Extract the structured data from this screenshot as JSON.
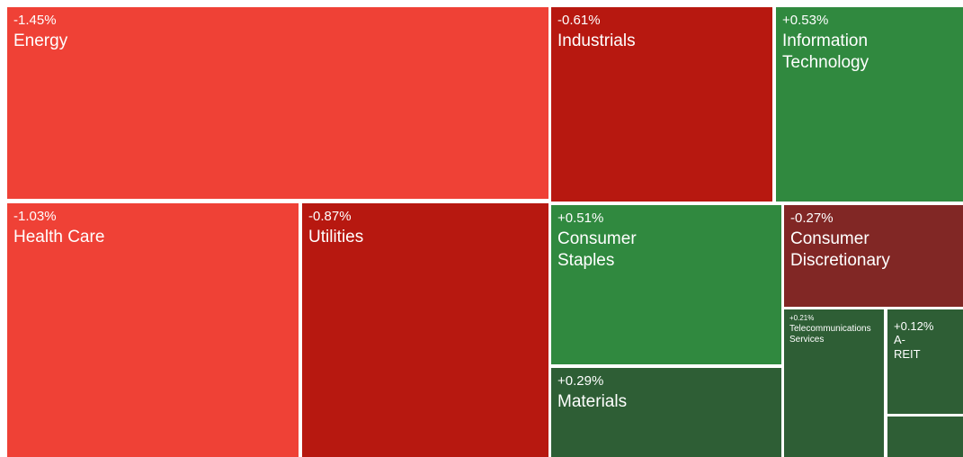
{
  "chart_data": {
    "type": "treemap",
    "title": "",
    "tiles": [
      {
        "name": "Energy",
        "change": "-1.45%",
        "value": -1.45,
        "color": "#ef4136"
      },
      {
        "name": "Industrials",
        "change": "-0.61%",
        "value": -0.61,
        "color": "#b71810"
      },
      {
        "name": "Information Technology",
        "change": "+0.53%",
        "value": 0.53,
        "color": "#30893f"
      },
      {
        "name": "Health Care",
        "change": "-1.03%",
        "value": -1.03,
        "color": "#ef4136"
      },
      {
        "name": "Utilities",
        "change": "-0.87%",
        "value": -0.87,
        "color": "#b71810"
      },
      {
        "name": "Consumer Staples",
        "change": "+0.51%",
        "value": 0.51,
        "color": "#30893f"
      },
      {
        "name": "Consumer Discretionary",
        "change": "-0.27%",
        "value": -0.27,
        "color": "#812725"
      },
      {
        "name": "Materials",
        "change": "+0.29%",
        "value": 0.29,
        "color": "#2e5e35"
      },
      {
        "name": "Telecommunications Services",
        "change": "+0.21%",
        "value": 0.21,
        "color": "#2e5e35"
      },
      {
        "name": "A-REIT",
        "change": "+0.12%",
        "value": 0.12,
        "color": "#2e5e35"
      },
      {
        "name": "",
        "change": "",
        "value": null,
        "color": "#2e5e35"
      }
    ]
  }
}
